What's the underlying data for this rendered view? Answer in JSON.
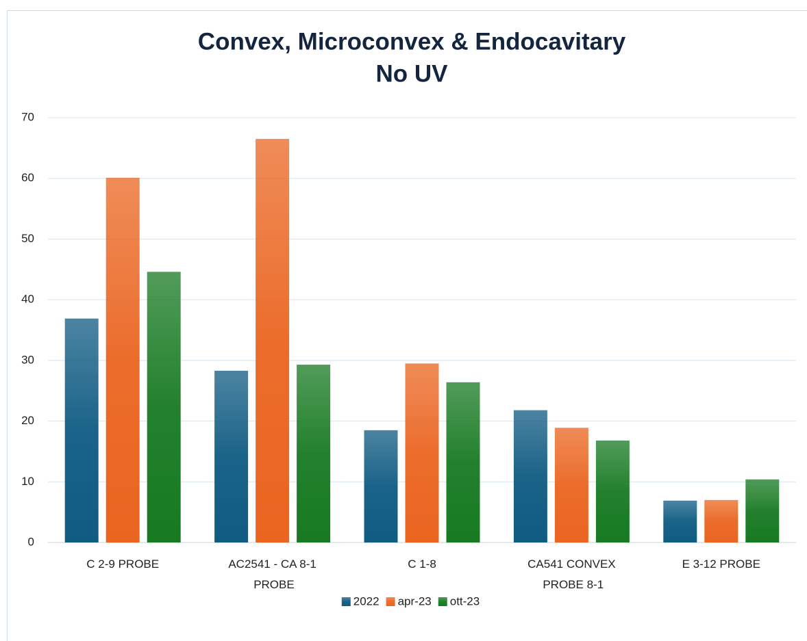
{
  "chart_data": {
    "type": "bar",
    "title": [
      "Convex, Microconvex & Endocavitary",
      "No UV"
    ],
    "categories": [
      "C 2-9 PROBE",
      "AC2541 - CA 8-1 PROBE",
      "C 1-8",
      "CA541 CONVEX PROBE 8-1",
      "E 3-12 PROBE"
    ],
    "series": [
      {
        "name": "2022",
        "color": "#0f5b82",
        "values": [
          36.9,
          28.3,
          18.5,
          21.8,
          6.9
        ]
      },
      {
        "name": "apr-23",
        "color": "#ea6520",
        "values": [
          60.1,
          66.5,
          29.5,
          18.9,
          7.0
        ]
      },
      {
        "name": "ott-23",
        "color": "#177a22",
        "values": [
          44.6,
          29.3,
          26.4,
          16.8,
          10.4
        ]
      }
    ],
    "ylim": [
      0,
      70
    ],
    "yticks": [
      0,
      10,
      20,
      30,
      40,
      50,
      60,
      70
    ],
    "grid": true,
    "legend": "bottom"
  }
}
